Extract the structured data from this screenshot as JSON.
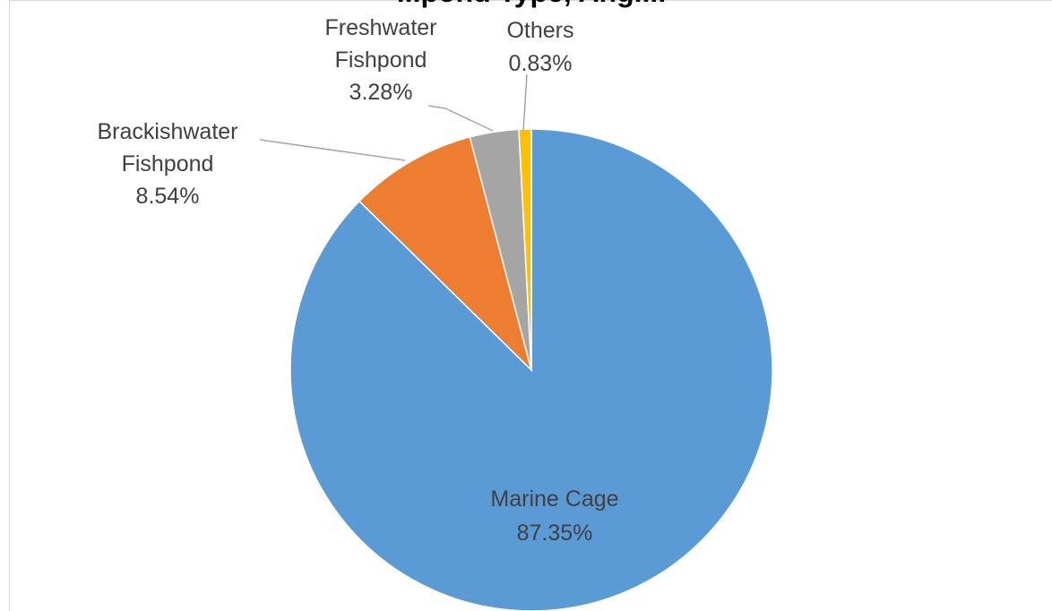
{
  "chart_data": {
    "type": "pie",
    "title": "...pond Type, Angl...",
    "start_angle_deg": 0,
    "direction": "clockwise",
    "slices": [
      {
        "name": "Marine Cage",
        "value": 87.35,
        "label": "87.35%",
        "color": "#5b9bd5"
      },
      {
        "name": "Brackishwater Fishpond",
        "value": 8.54,
        "label": "8.54%",
        "color": "#ed7d31"
      },
      {
        "name": "Freshwater Fishpond",
        "value": 3.28,
        "label": "3.28%",
        "color": "#a5a5a5"
      },
      {
        "name": "Others",
        "value": 0.83,
        "label": "0.83%",
        "color": "#ffc000"
      }
    ]
  },
  "labels": {
    "marine_name": "Marine Cage",
    "marine_pct": "87.35%",
    "brackish_name_1": "Brackishwater",
    "brackish_name_2": "Fishpond",
    "brackish_pct": "8.54%",
    "fresh_name_1": "Freshwater",
    "fresh_name_2": "Fishpond",
    "fresh_pct": "3.28%",
    "others_name": "Others",
    "others_pct": "0.83%"
  }
}
